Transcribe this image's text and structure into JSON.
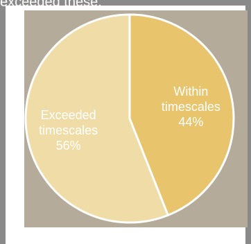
{
  "page": {
    "heading_fragment": "exceeded these."
  },
  "colors": {
    "background": "#8a8a8a",
    "panel": "#ffffff",
    "plot_background": "#b5ab9b",
    "slice_within": "#e8c46c",
    "slice_exceeded": "#f0dca6",
    "slice_border": "#ffffff"
  },
  "chart_data": {
    "type": "pie",
    "title": "",
    "series": [
      {
        "values": [
          44,
          56
        ],
        "labels": [
          "Within timescales",
          "Exceeded timescales"
        ],
        "label_lines": [
          [
            "Within",
            "timescales",
            "44%"
          ],
          [
            "Exceeded",
            "timescales",
            "56%"
          ]
        ]
      }
    ],
    "unit": "%",
    "legend": "none"
  }
}
